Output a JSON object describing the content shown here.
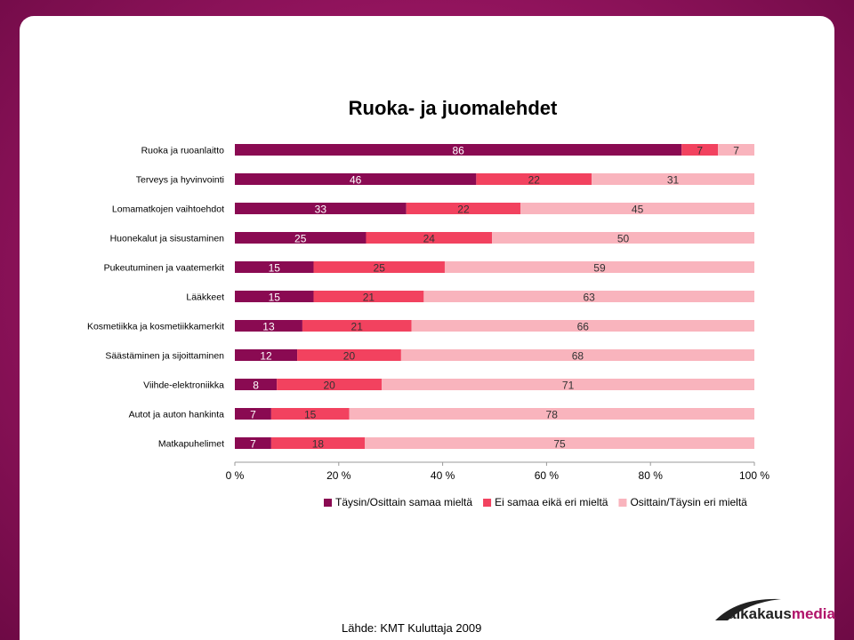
{
  "source_note": "Lähde: KMT Kuluttaja 2009",
  "logo": {
    "brand_dark": "aikakaus",
    "brand_accent": "media",
    "dark_color": "#222222",
    "accent_color": "#b0136a"
  },
  "chart_data": {
    "type": "bar",
    "orientation": "horizontal",
    "stacked": "percent",
    "title": "Ruoka- ja juomalehdet",
    "categories": [
      "Ruoka ja ruoanlaitto",
      "Terveys ja hyvinvointi",
      "Lomamatkojen vaihtoehdot",
      "Huonekalut ja sisustaminen",
      "Pukeutuminen ja vaatemerkit",
      "Lääkkeet",
      "Kosmetiikka ja kosmetiikkamerkit",
      "Säästäminen ja sijoittaminen",
      "Viihde-elektroniikka",
      "Autot ja auton hankinta",
      "Matkapuhelimet"
    ],
    "series": [
      {
        "name": "Täysin/Osittain samaa mieltä",
        "color": "#8a0a52",
        "label_color": "#ffffff",
        "values": [
          86,
          46,
          33,
          25,
          15,
          15,
          13,
          12,
          8,
          7,
          7
        ]
      },
      {
        "name": "Ei samaa eikä eri mieltä",
        "color": "#f2425f",
        "label_color": "#333333",
        "values": [
          7,
          22,
          22,
          24,
          25,
          21,
          21,
          20,
          20,
          15,
          18
        ]
      },
      {
        "name": "Osittain/Täysin eri mieltä",
        "color": "#f9b4bd",
        "label_color": "#333333",
        "values": [
          7,
          31,
          45,
          50,
          59,
          63,
          66,
          68,
          71,
          78,
          75
        ]
      }
    ],
    "xlim": [
      0,
      100
    ],
    "xticks": [
      "0 %",
      "20 %",
      "40 %",
      "60 %",
      "80 %",
      "100 %"
    ],
    "legend": "bottom"
  }
}
